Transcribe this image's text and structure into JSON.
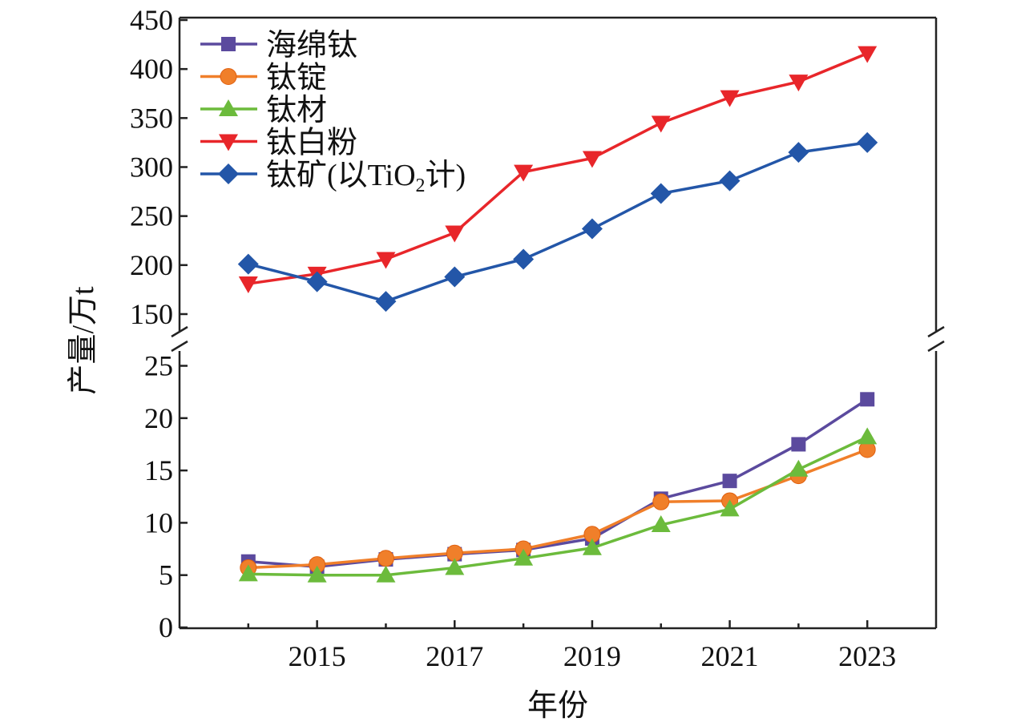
{
  "chart_data": {
    "type": "line",
    "title": "",
    "xlabel": "年份",
    "ylabel": "产量/万t",
    "x": [
      2014,
      2015,
      2016,
      2017,
      2018,
      2019,
      2020,
      2021,
      2022,
      2023
    ],
    "x_tick_labels": [
      "2015",
      "2017",
      "2019",
      "2021",
      "2023"
    ],
    "xlim": [
      2013,
      2024
    ],
    "y_axis_broken": true,
    "ylim_upper": [
      127.5,
      450
    ],
    "ylim_lower": [
      0,
      26.8
    ],
    "y_tick_labels_upper": [
      "150",
      "200",
      "250",
      "300",
      "350",
      "400",
      "450"
    ],
    "y_tick_labels_lower": [
      "0",
      "5",
      "10",
      "15",
      "20",
      "25"
    ],
    "legend_placement": "top-left",
    "series": [
      {
        "name": "海绵钛",
        "color": "#5b4a9e",
        "marker": "square",
        "panel": "lower",
        "values": [
          6.3,
          5.8,
          6.5,
          7.0,
          7.4,
          8.5,
          12.3,
          14.0,
          17.5,
          21.8
        ]
      },
      {
        "name": "钛锭",
        "color": "#f07f2a",
        "marker": "circle",
        "panel": "lower",
        "values": [
          5.7,
          6.0,
          6.6,
          7.1,
          7.5,
          8.9,
          12.0,
          12.1,
          14.5,
          17.0
        ]
      },
      {
        "name": "钛材",
        "color": "#6cbb3c",
        "marker": "triangle-up",
        "panel": "lower",
        "values": [
          5.1,
          5.0,
          5.0,
          5.7,
          6.6,
          7.6,
          9.8,
          11.3,
          15.1,
          18.2
        ]
      },
      {
        "name": "钛白粉",
        "color": "#e8262a",
        "marker": "triangle-down",
        "panel": "upper",
        "values": [
          181,
          191,
          206,
          233,
          295,
          309,
          345,
          371,
          387,
          416
        ]
      },
      {
        "name": "钛矿(以TiO₂计)",
        "name_main": "钛矿(以TiO",
        "name_sub": "2",
        "name_tail": "计)",
        "color": "#2356a8",
        "marker": "diamond",
        "panel": "upper",
        "values": [
          201,
          183,
          163,
          188,
          206,
          237,
          273,
          286,
          315,
          325
        ]
      }
    ]
  }
}
